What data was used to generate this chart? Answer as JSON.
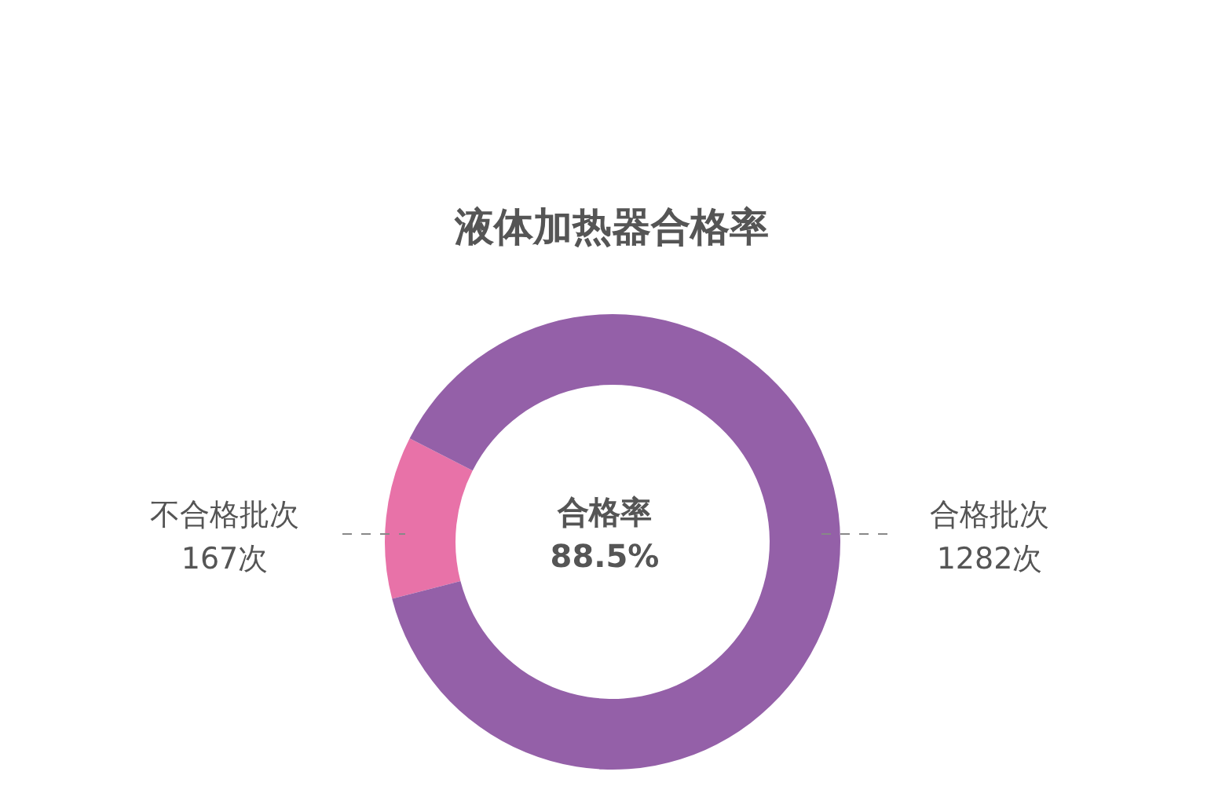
{
  "chart_data": {
    "type": "donut",
    "title": "液体加热器合格率",
    "categories": [
      "不合格批次",
      "合格批次"
    ],
    "values": [
      167,
      1282
    ],
    "value_labels": [
      "167次",
      "1282次"
    ],
    "colors": [
      "#e872a8",
      "#9460a8"
    ],
    "annotations": [
      "合格率",
      "88.5%"
    ]
  }
}
